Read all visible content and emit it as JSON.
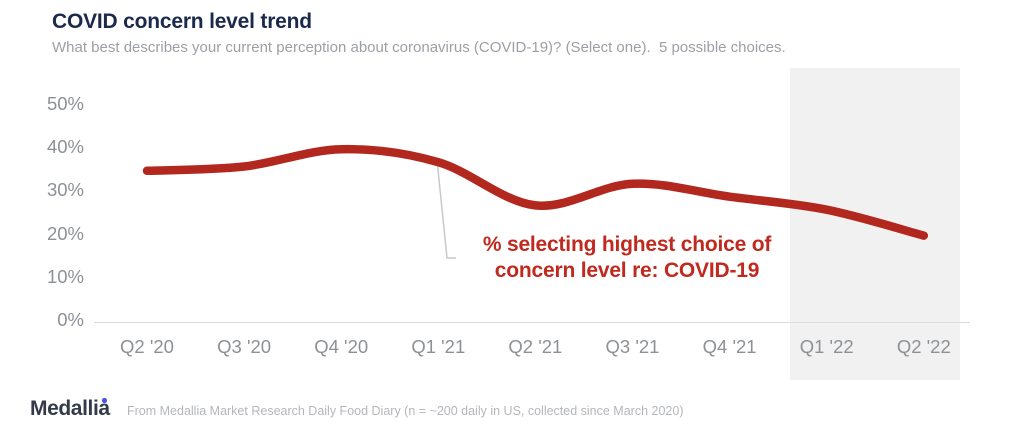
{
  "header": {
    "title": "COVID concern level trend",
    "subtitle": "What best describes your current perception about coronavirus (COVID-19)? (Select one).  5 possible choices."
  },
  "chart_data": {
    "type": "line",
    "title": "COVID concern level trend",
    "categories": [
      "Q2 '20",
      "Q3 '20",
      "Q4 '20",
      "Q1 '21",
      "Q2 '21",
      "Q3 '21",
      "Q4 '21",
      "Q1 '22",
      "Q2 '22"
    ],
    "values": [
      35,
      36,
      40,
      37,
      27,
      32,
      29,
      26,
      20
    ],
    "series_name": "% selecting highest choice of concern level re: COVID-19",
    "unit": "%",
    "xlabel": "",
    "ylabel": "",
    "ylim": [
      0,
      50
    ],
    "y_ticks": [
      "50%",
      "40%",
      "30%",
      "20%",
      "10%",
      "0%"
    ],
    "grid": false,
    "legend": "none",
    "line_color": "#b2281e",
    "highlight_region": {
      "from": "Q1 '22",
      "to": "Q2 '22",
      "color": "#f1f1f2"
    },
    "annotation": {
      "line1": "% selecting highest choice of",
      "line2": "concern level re: COVID-19",
      "color": "#c02a1e"
    }
  },
  "footer": {
    "logo_text": "Medallia",
    "source_note": "From Medallia Market Research Daily Food Diary (n = ~200 daily in US, collected since March 2020)"
  }
}
